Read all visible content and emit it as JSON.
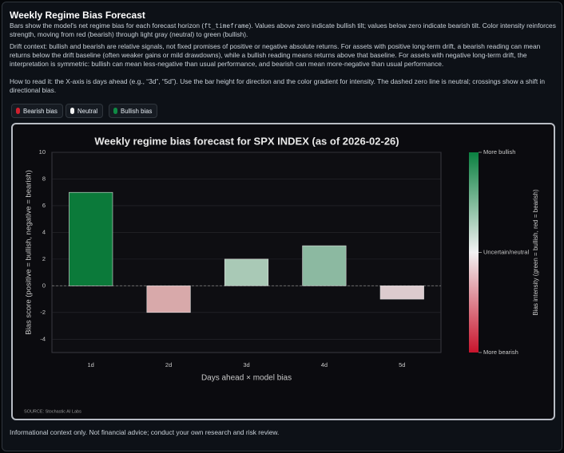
{
  "header": {
    "title": "Weekly Regime Bias Forecast",
    "intro": {
      "before": "Bars show the model's net regime bias for each forecast horizon (",
      "code": "ft_timeframe",
      "after": "). Values above zero indicate bullish tilt; values below zero indicate bearish tilt. Color intensity reinforces strength, moving from red (bearish) through light gray (neutral) to green (bullish)."
    },
    "drift": "Drift context: bullish and bearish are relative signals, not fixed promises of positive or negative absolute returns. For assets with positive long-term drift, a bearish reading can mean returns below the drift baseline (often weaker gains or mild drawdowns), while a bullish reading means returns above that baseline. For assets with negative long-term drift, the interpretation is symmetric: bullish can mean less-negative than usual performance, and bearish can mean more-negative than usual performance.",
    "how_to": "How to read it: the X-axis is days ahead (e.g., “3d”, “5d”). Use the bar height for direction and the color gradient for intensity. The dashed zero line is neutral; crossings show a shift in directional bias."
  },
  "legend": [
    {
      "label": "Bearish bias",
      "color": "#d0202e"
    },
    {
      "label": "Neutral",
      "color": "#f2f2f2"
    },
    {
      "label": "Bullish bias",
      "color": "#0f8a44"
    }
  ],
  "chart_data": {
    "type": "bar",
    "title": "Weekly regime bias forecast for SPX INDEX (as of 2026-02-26)",
    "x_label": "Days ahead × model bias",
    "y_label": "Bias score (positive = bullish, negative = bearish)",
    "categories": [
      "1d",
      "2d",
      "3d",
      "4d",
      "5d"
    ],
    "values": [
      7,
      -2,
      2,
      3,
      -1
    ],
    "colors": [
      "#0b7a3a",
      "#d8a9aa",
      "#a9c9b6",
      "#8cb9a1",
      "#dccbce"
    ],
    "ylim": [
      -5,
      10
    ],
    "yticks": [
      -4,
      -2,
      0,
      2,
      4,
      6,
      8,
      10
    ],
    "grid": true,
    "zero_line": "dashed",
    "colorbar": {
      "label": "Bias intensity (green = bullish, red = bearish)",
      "ticks": [
        "More bullish",
        "Uncertain/neutral",
        "More bearish"
      ],
      "colors": [
        "#0a8040",
        "#f2f2f2",
        "#c8142c"
      ]
    },
    "source": "SOURCE: Stochastic AI Labs"
  },
  "footer": "Informational context only. Not financial advice; conduct your own research and risk review."
}
